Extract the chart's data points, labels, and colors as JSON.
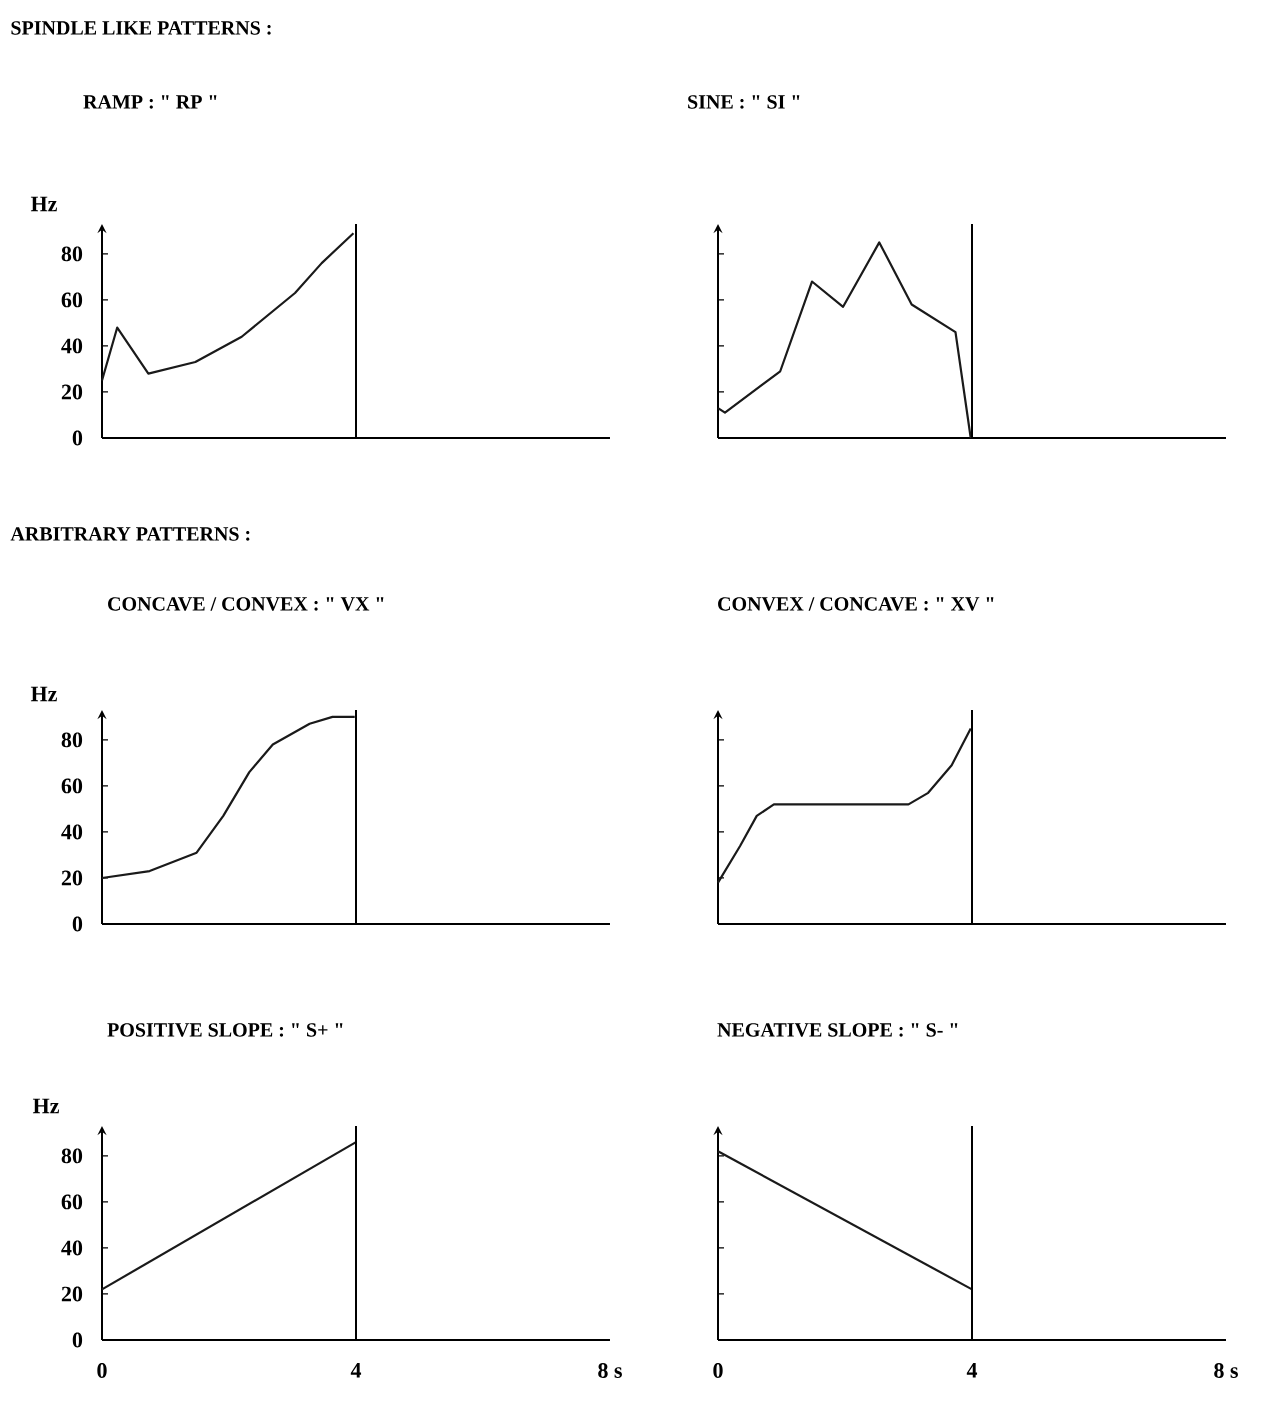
{
  "chart_data": [
    {
      "type": "line",
      "title": "RAMP : \" RP \"",
      "ylabel": "Hz",
      "annotations": [
        "SPINDLE LIKE PATTERNS :"
      ],
      "color": "#1a1a1a",
      "x": [
        0,
        0.24,
        0.73,
        1.47,
        2.2,
        3.04,
        3.46,
        3.96
      ],
      "values": [
        25,
        48,
        28,
        33,
        44,
        63,
        76,
        89
      ],
      "xlim": [
        0,
        8
      ],
      "ylim": [
        0,
        93
      ],
      "yticks": [
        0,
        20,
        40,
        60,
        80
      ],
      "ref_lines": [
        {
          "axis": "x",
          "value": 4
        }
      ],
      "tick_labels": "y"
    },
    {
      "type": "line",
      "title": "SINE : \" SI \"",
      "color": "#1a1a1a",
      "x": [
        0,
        0.11,
        0.98,
        1.48,
        1.97,
        2.54,
        3.05,
        3.74,
        3.98
      ],
      "values": [
        13,
        11,
        29,
        68,
        57,
        85,
        58,
        46,
        0
      ],
      "xlim": [
        0,
        8
      ],
      "ylim": [
        0,
        93
      ],
      "yticks": [
        0,
        20,
        40,
        60,
        80
      ],
      "ref_lines": [
        {
          "axis": "x",
          "value": 4
        }
      ],
      "tick_labels": false
    },
    {
      "type": "line",
      "title": "CONCAVE / CONVEX : \" VX \"",
      "ylabel": "Hz",
      "annotations": [
        "ARBITRARY PATTERNS :"
      ],
      "color": "#1a1a1a",
      "x": [
        0,
        0.75,
        1.49,
        1.91,
        2.32,
        2.69,
        3.27,
        3.63,
        3.98
      ],
      "values": [
        20,
        23,
        31,
        47,
        66,
        78,
        87,
        90,
        90
      ],
      "xlim": [
        0,
        8
      ],
      "ylim": [
        0,
        93
      ],
      "yticks": [
        0,
        20,
        40,
        60,
        80
      ],
      "ref_lines": [
        {
          "axis": "x",
          "value": 4
        }
      ],
      "tick_labels": "y"
    },
    {
      "type": "line",
      "title": "CONVEX / CONCAVE : \" XV \"",
      "color": "#1a1a1a",
      "x": [
        0,
        0.35,
        0.61,
        0.88,
        3.0,
        3.31,
        3.68,
        3.98
      ],
      "values": [
        18,
        34,
        47,
        52,
        52,
        57,
        69,
        85
      ],
      "xlim": [
        0,
        8
      ],
      "ylim": [
        0,
        93
      ],
      "yticks": [
        0,
        20,
        40,
        60,
        80
      ],
      "ref_lines": [
        {
          "axis": "x",
          "value": 4
        }
      ],
      "tick_labels": false
    },
    {
      "type": "line",
      "title": "POSITIVE SLOPE : \" S+ \"",
      "ylabel": "Hz",
      "color": "#1a1a1a",
      "x": [
        0,
        4
      ],
      "values": [
        22,
        86
      ],
      "xlim": [
        0,
        8
      ],
      "ylim": [
        0,
        93
      ],
      "xticks": [
        0,
        4,
        {
          "value": 8,
          "label": "8 s"
        }
      ],
      "yticks": [
        0,
        20,
        40,
        60,
        80
      ],
      "ref_lines": [
        {
          "axis": "x",
          "value": 4
        }
      ]
    },
    {
      "type": "line",
      "title": "NEGATIVE SLOPE : \" S- \"",
      "color": "#1a1a1a",
      "x": [
        0,
        4
      ],
      "values": [
        82,
        22
      ],
      "xlim": [
        0,
        8
      ],
      "ylim": [
        0,
        93
      ],
      "xticks": [
        0,
        4,
        {
          "value": 8,
          "label": "8 s"
        }
      ],
      "yticks": [
        0,
        20,
        40,
        60,
        80
      ],
      "ref_lines": [
        {
          "axis": "x",
          "value": 4
        }
      ],
      "tick_labels": "x"
    }
  ]
}
